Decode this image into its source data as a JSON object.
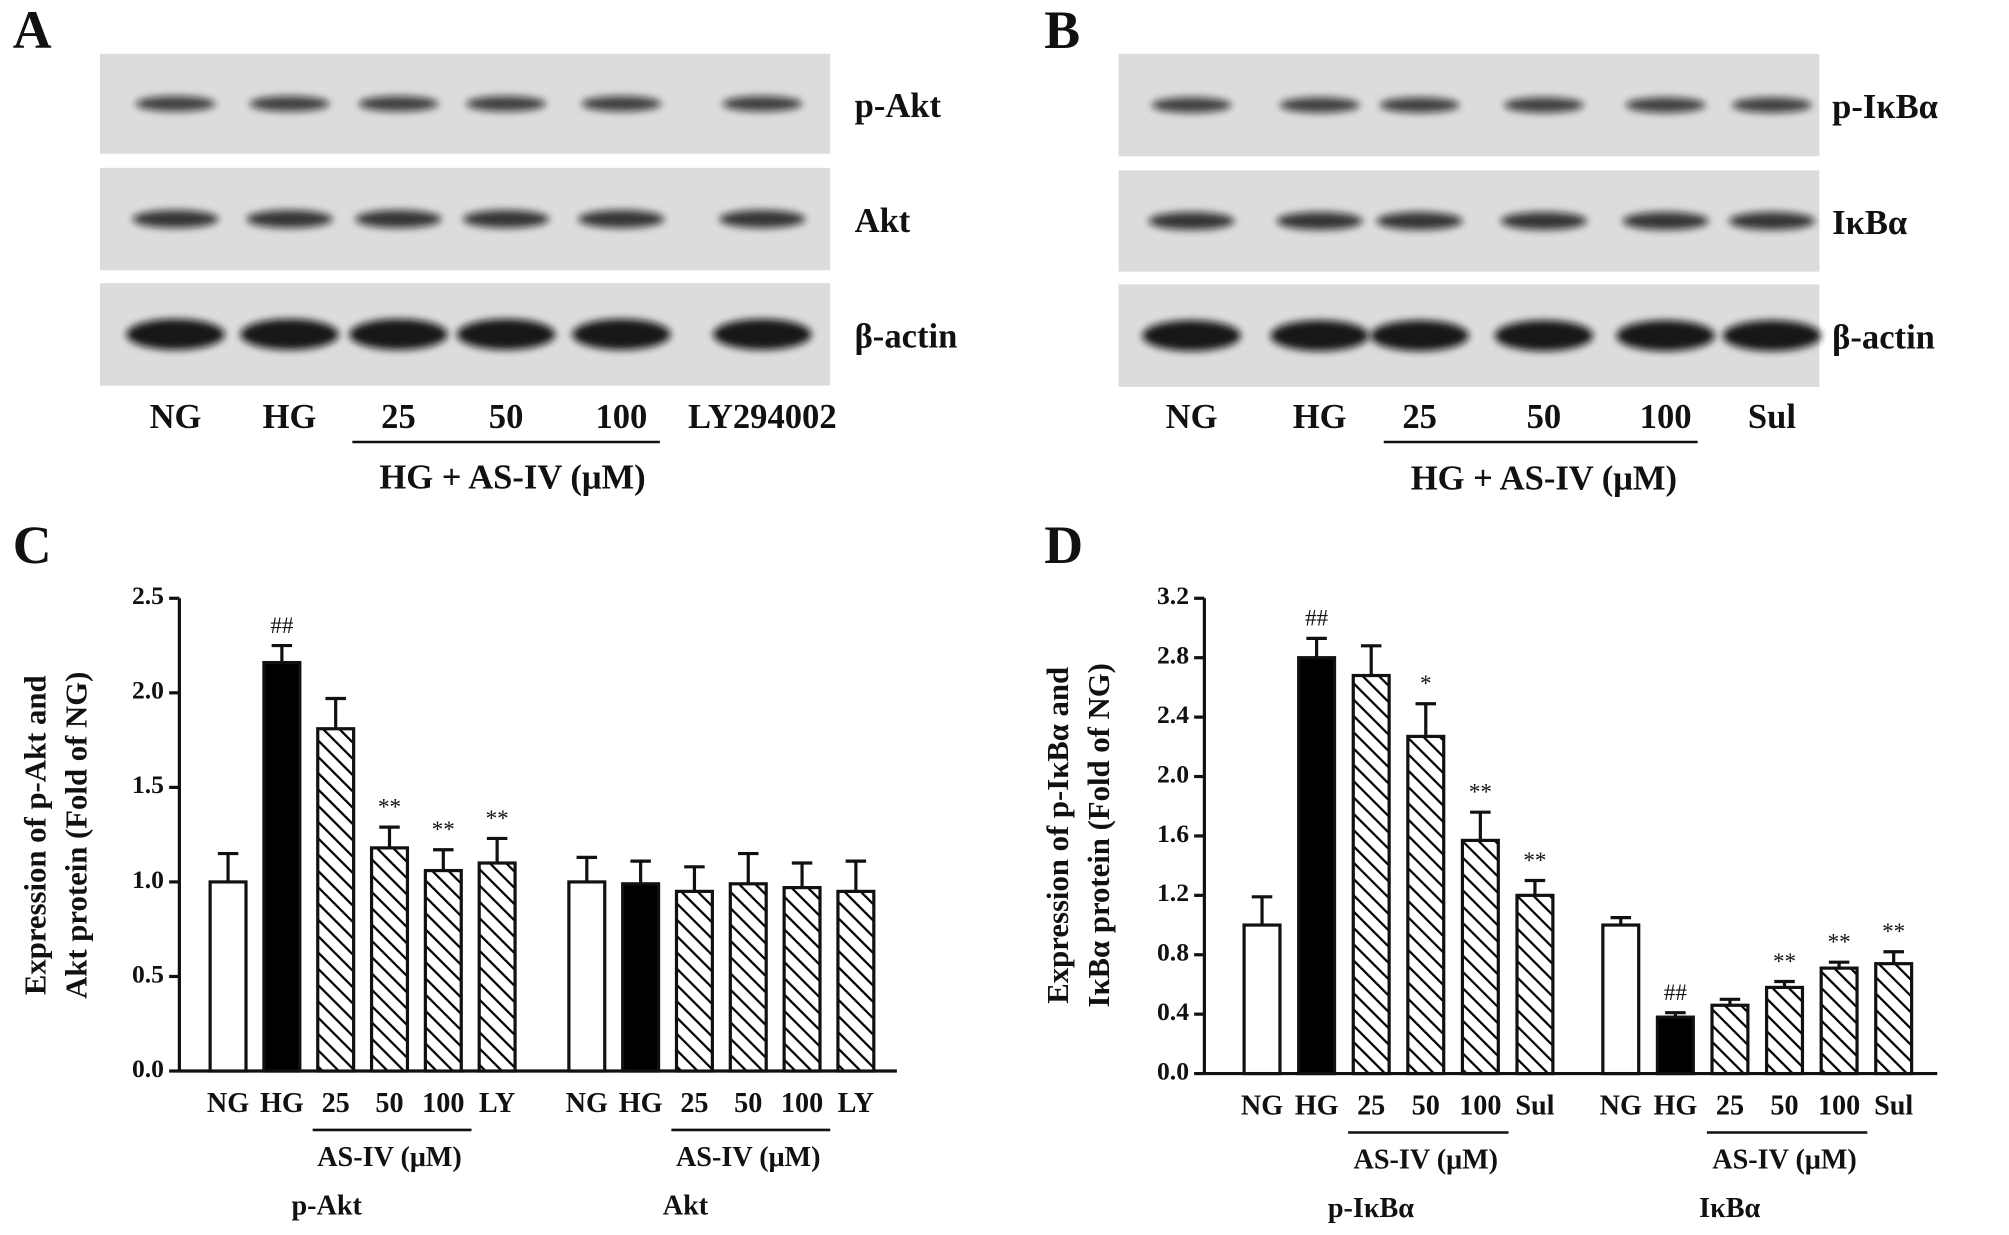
{
  "blots": [
    {
      "panel": "A",
      "bands": [
        "p-Akt",
        "Akt",
        "β-actin"
      ],
      "lanes": [
        "NG",
        "HG",
        "25",
        "50",
        "100",
        "LY294002"
      ],
      "group_label": "HG + AS-IV (μM)"
    },
    {
      "panel": "B",
      "bands": [
        "p-IκBα",
        "IκBα",
        "β-actin"
      ],
      "lanes": [
        "NG",
        "HG",
        "25",
        "50",
        "100",
        "Sul"
      ],
      "group_label": "HG + AS-IV (μM)"
    }
  ],
  "chart_data": [
    {
      "type": "bar",
      "panel": "C",
      "ylabel": [
        "Expression of p-Akt and",
        "Akt protein (Fold of NG)"
      ],
      "categories": [
        "NG",
        "HG",
        "25",
        "50",
        "100",
        "LY",
        "NG",
        "HG",
        "25",
        "50",
        "100",
        "LY"
      ],
      "values": [
        1.0,
        2.16,
        1.81,
        1.18,
        1.06,
        1.1,
        1.0,
        0.99,
        0.95,
        0.99,
        0.97,
        0.95
      ],
      "errors": [
        0.15,
        0.09,
        0.16,
        0.11,
        0.11,
        0.13,
        0.13,
        0.12,
        0.13,
        0.16,
        0.13,
        0.16
      ],
      "fills": [
        "#ffffff",
        "#000000",
        "hatch",
        "hatch",
        "hatch",
        "hatch",
        "#ffffff",
        "#000000",
        "hatch",
        "hatch",
        "hatch",
        "hatch"
      ],
      "value_annotations": [
        null,
        "##",
        null,
        "**",
        "**",
        "**",
        null,
        null,
        null,
        null,
        null,
        null
      ],
      "groups": [
        {
          "name": "p-Akt",
          "sub_label": "AS-IV (μM)"
        },
        {
          "name": "Akt",
          "sub_label": "AS-IV (μM)"
        }
      ],
      "ylim": [
        0,
        2.5
      ],
      "yticks": [
        {
          "value": 0,
          "label": "0.0"
        },
        0.5,
        {
          "value": 1,
          "label": "1.0"
        },
        1.5,
        {
          "value": 2,
          "label": "2.0"
        },
        2.5
      ]
    },
    {
      "type": "bar",
      "panel": "D",
      "ylabel": [
        "Expression of p-IκBα and",
        "IκBα  protein (Fold of NG)"
      ],
      "categories": [
        "NG",
        "HG",
        "25",
        "50",
        "100",
        "Sul",
        "NG",
        "HG",
        "25",
        "50",
        "100",
        "Sul"
      ],
      "values": [
        1.0,
        2.8,
        2.68,
        2.27,
        1.57,
        1.2,
        1.0,
        0.38,
        0.46,
        0.58,
        0.71,
        0.74
      ],
      "errors": [
        0.19,
        0.13,
        0.2,
        0.22,
        0.19,
        0.1,
        0.05,
        0.03,
        0.04,
        0.04,
        0.04,
        0.08
      ],
      "fills": [
        "#ffffff",
        "#000000",
        "hatch",
        "hatch",
        "hatch",
        "hatch",
        "#ffffff",
        "#000000",
        "hatch",
        "hatch",
        "hatch",
        "hatch"
      ],
      "value_annotations": [
        null,
        "##",
        null,
        "*",
        "**",
        "**",
        null,
        "##",
        null,
        "**",
        "**",
        "**"
      ],
      "groups": [
        {
          "name": "p-IκBα",
          "sub_label": "AS-IV (μM)"
        },
        {
          "name": "IκBα",
          "sub_label": "AS-IV (μM)"
        }
      ],
      "ylim": [
        0,
        3.2
      ],
      "yticks": [
        {
          "value": 0,
          "label": "0.0"
        },
        0.4,
        0.8,
        1.2,
        1.6,
        {
          "value": 2,
          "label": "2.0"
        },
        2.4,
        2.8,
        3.2
      ]
    }
  ]
}
